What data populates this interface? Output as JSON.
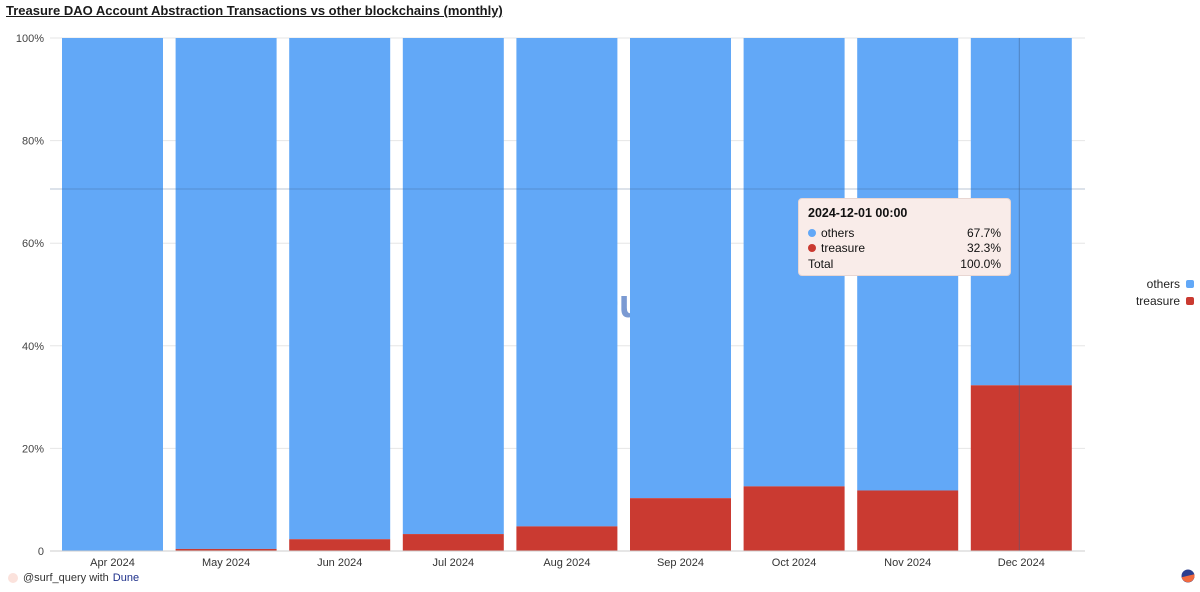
{
  "title": "Treasure DAO Account Abstraction Transactions vs other blockchains (monthly)",
  "chart_data": {
    "type": "bar",
    "stacked": true,
    "normalized": true,
    "categories": [
      "Apr 2024",
      "May 2024",
      "Jun 2024",
      "Jul 2024",
      "Aug 2024",
      "Sep 2024",
      "Oct 2024",
      "Nov 2024",
      "Dec 2024"
    ],
    "series": [
      {
        "name": "treasure",
        "color": "#ca3a31",
        "values": [
          0.0,
          0.4,
          2.3,
          3.3,
          4.8,
          10.3,
          12.6,
          11.8,
          32.3
        ]
      },
      {
        "name": "others",
        "color": "#62a8f7",
        "values": [
          100.0,
          99.6,
          97.7,
          96.7,
          95.2,
          89.7,
          87.4,
          88.2,
          67.7
        ]
      }
    ],
    "ylim": [
      0,
      100
    ],
    "yticks": [
      0,
      20,
      40,
      60,
      80,
      100
    ],
    "ytick_labels": [
      "0",
      "20%",
      "40%",
      "60%",
      "80%",
      "100%"
    ],
    "grid": true,
    "legend_position": "right",
    "highlighted_category": "Dec 2024",
    "watermark": "Dune"
  },
  "tooltip": {
    "date": "2024-12-01 00:00",
    "rows": [
      {
        "label": "others",
        "value": "67.7%",
        "color": "#62a8f7"
      },
      {
        "label": "treasure",
        "value": "32.3%",
        "color": "#ca3a31"
      },
      {
        "label": "Total",
        "value": "100.0%"
      }
    ]
  },
  "legend": [
    {
      "label": "others",
      "color": "#62a8f7"
    },
    {
      "label": "treasure",
      "color": "#ca3a31"
    }
  ],
  "footer": {
    "handle": "@surf_query with",
    "brand": "Dune"
  }
}
